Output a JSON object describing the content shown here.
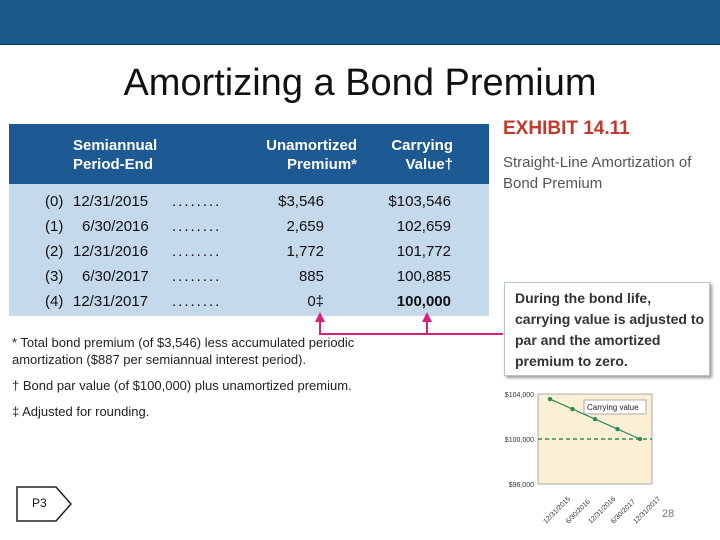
{
  "slide": {
    "title": "Amortizing a Bond Premium",
    "page_number": "28",
    "nav_label": "P3"
  },
  "exhibit": {
    "title": "EXHIBIT 14.11",
    "subtitle": "Straight-Line Amortization of Bond Premium"
  },
  "table": {
    "headers": {
      "period": [
        "Semiannual",
        "Period-End"
      ],
      "premium": [
        "Unamortized",
        "Premium*"
      ],
      "carrying": [
        "Carrying",
        "Value†"
      ]
    },
    "rows": [
      {
        "idx": "(0)",
        "date": "12/31/2015",
        "dots": "........",
        "premium": "$3,546",
        "carrying": "$103,546"
      },
      {
        "idx": "(1)",
        "date": "6/30/2016",
        "dots": "........",
        "premium": "2,659",
        "carrying": "102,659"
      },
      {
        "idx": "(2)",
        "date": "12/31/2016",
        "dots": "........",
        "premium": "1,772",
        "carrying": "101,772"
      },
      {
        "idx": "(3)",
        "date": "6/30/2017",
        "dots": "........",
        "premium": "885",
        "carrying": "100,885"
      },
      {
        "idx": "(4)",
        "date": "12/31/2017",
        "dots": "........",
        "premium": "0‡",
        "carrying": "100,000"
      }
    ]
  },
  "notes": {
    "n1": "* Total bond premium (of $3,546) less accumulated periodic amortization ($887 per semiannual interest period).",
    "n2": "† Bond par value (of $100,000) plus unamortized premium.",
    "n3": "‡ Adjusted for rounding."
  },
  "callout": {
    "text": "During the bond life, carrying value is adjusted to par and the amortized premium to zero."
  },
  "mini_chart": {
    "legend": "Carrying value",
    "y_ticks": [
      "$104,000",
      "$100,000",
      "$96,000"
    ],
    "x_ticks": [
      "12/31/2015",
      "6/30/2016",
      "12/31/2016",
      "6/30/2017",
      "12/31/2017"
    ],
    "points": [
      103546,
      102659,
      101772,
      100885,
      100000
    ],
    "par": 100000,
    "ylim": [
      96000,
      104000
    ]
  },
  "colors": {
    "header_bg": "#1d5a93",
    "table_bg": "#c5d9ec",
    "exhibit_red": "#c0392b",
    "arrow_pink": "#d6217f",
    "chart_green": "#2e8b57"
  }
}
